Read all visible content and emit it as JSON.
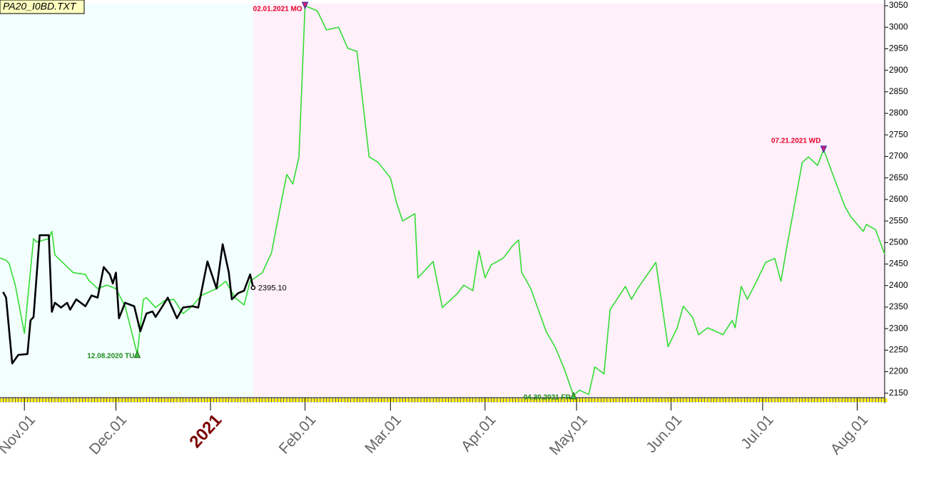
{
  "chart_data": {
    "type": "line",
    "title": "PA20_I0BD.TXT",
    "xlim": [
      "2020-10-24",
      "2021-08-10"
    ],
    "xticks": [
      {
        "value": "2020-11-01",
        "label": "Nov.01"
      },
      {
        "value": "2020-12-01",
        "label": "Dec.01"
      },
      {
        "value": "2021-01-01",
        "label": "2021"
      },
      {
        "value": "2021-02-01",
        "label": "Feb.01"
      },
      {
        "value": "2021-03-01",
        "label": "Mar.01"
      },
      {
        "value": "2021-04-01",
        "label": "Apr.01"
      },
      {
        "value": "2021-05-01",
        "label": "May.01"
      },
      {
        "value": "2021-06-01",
        "label": "Jun.01"
      },
      {
        "value": "2021-07-01",
        "label": "Jul.01"
      },
      {
        "value": "2021-08-01",
        "label": "Aug.01"
      }
    ],
    "ylim": [
      2143,
      3055
    ],
    "yticks": [
      2150,
      2200,
      2250,
      2300,
      2350,
      2400,
      2450,
      2500,
      2550,
      2600,
      2650,
      2700,
      2750,
      2800,
      2850,
      2900,
      2950,
      3000,
      3050
    ],
    "forecast_start": "2021-01-15",
    "series": [
      {
        "color": "#33dd33",
        "x": [
          "2020-10-24",
          "2020-10-26",
          "2020-10-27",
          "2020-10-29",
          "2020-11-01",
          "2020-11-04",
          "2020-11-05",
          "2020-11-09",
          "2020-11-10",
          "2020-11-11",
          "2020-11-17",
          "2020-11-21",
          "2020-11-22",
          "2020-11-25",
          "2020-11-28",
          "2020-12-01",
          "2020-12-04",
          "2020-12-08",
          "2020-12-10",
          "2020-12-11",
          "2020-12-14",
          "2020-12-17",
          "2020-12-20",
          "2020-12-23",
          "2020-12-26",
          "2020-12-29",
          "2021-01-03",
          "2021-01-06",
          "2021-01-09",
          "2021-01-12",
          "2021-01-14",
          "2021-01-18",
          "2021-01-21",
          "2021-01-23",
          "2021-01-26",
          "2021-01-28",
          "2021-01-30",
          "2021-02-01",
          "2021-02-05",
          "2021-02-08",
          "2021-02-12",
          "2021-02-15",
          "2021-02-18",
          "2021-02-22",
          "2021-02-25",
          "2021-03-01",
          "2021-03-03",
          "2021-03-05",
          "2021-03-09",
          "2021-03-10",
          "2021-03-15",
          "2021-03-18",
          "2021-03-23",
          "2021-03-25",
          "2021-03-28",
          "2021-03-30",
          "2021-04-01",
          "2021-04-03",
          "2021-04-07",
          "2021-04-10",
          "2021-04-12",
          "2021-04-13",
          "2021-04-16",
          "2021-04-21",
          "2021-04-24",
          "2021-04-27",
          "2021-04-30",
          "2021-05-02",
          "2021-05-05",
          "2021-05-07",
          "2021-05-10",
          "2021-05-12",
          "2021-05-17",
          "2021-05-19",
          "2021-05-21",
          "2021-05-27",
          "2021-05-31",
          "2021-06-03",
          "2021-06-05",
          "2021-06-08",
          "2021-06-10",
          "2021-06-13",
          "2021-06-18",
          "2021-06-21",
          "2021-06-22",
          "2021-06-24",
          "2021-06-26",
          "2021-06-29",
          "2021-07-02",
          "2021-07-05",
          "2021-07-07",
          "2021-07-09",
          "2021-07-14",
          "2021-07-16",
          "2021-07-19",
          "2021-07-21",
          "2021-07-24",
          "2021-07-28",
          "2021-07-30",
          "2021-08-03",
          "2021-08-04",
          "2021-08-07",
          "2021-08-10"
        ],
        "values": [
          2464,
          2459,
          2451,
          2401,
          2289,
          2509,
          2501,
          2509,
          2526,
          2471,
          2430,
          2426,
          2413,
          2393,
          2401,
          2393,
          2352,
          2241,
          2368,
          2372,
          2349,
          2365,
          2368,
          2335,
          2352,
          2377,
          2393,
          2410,
          2372,
          2355,
          2410,
          2430,
          2476,
          2550,
          2658,
          2636,
          2699,
          3050,
          3038,
          2994,
          3000,
          2951,
          2944,
          2699,
          2686,
          2650,
          2592,
          2550,
          2567,
          2418,
          2456,
          2349,
          2382,
          2401,
          2388,
          2481,
          2418,
          2448,
          2464,
          2492,
          2506,
          2431,
          2393,
          2294,
          2257,
          2206,
          2145,
          2157,
          2147,
          2211,
          2195,
          2344,
          2398,
          2368,
          2393,
          2454,
          2258,
          2302,
          2352,
          2327,
          2286,
          2302,
          2286,
          2319,
          2302,
          2398,
          2368,
          2410,
          2454,
          2463,
          2410,
          2492,
          2686,
          2699,
          2679,
          2716,
          2658,
          2583,
          2559,
          2526,
          2542,
          2530,
          2473
        ]
      },
      {
        "color": "#000000",
        "x": [
          "2020-10-25",
          "2020-10-26",
          "2020-10-28",
          "2020-10-30",
          "2020-11-02",
          "2020-11-03",
          "2020-11-04",
          "2020-11-06",
          "2020-11-09",
          "2020-11-10",
          "2020-11-11",
          "2020-11-13",
          "2020-11-15",
          "2020-11-16",
          "2020-11-18",
          "2020-11-21",
          "2020-11-23",
          "2020-11-25",
          "2020-11-27",
          "2020-11-29",
          "2020-11-30",
          "2020-12-01",
          "2020-12-02",
          "2020-12-04",
          "2020-12-07",
          "2020-12-09",
          "2020-12-11",
          "2020-12-13",
          "2020-12-14",
          "2020-12-16",
          "2020-12-18",
          "2020-12-21",
          "2020-12-23",
          "2020-12-26",
          "2020-12-28",
          "2020-12-31",
          "2021-01-03",
          "2021-01-05",
          "2021-01-07",
          "2021-01-08",
          "2021-01-10",
          "2021-01-12",
          "2021-01-14",
          "2021-01-15"
        ],
        "values": [
          2385,
          2372,
          2219,
          2239,
          2241,
          2319,
          2327,
          2517,
          2517,
          2339,
          2360,
          2349,
          2360,
          2344,
          2368,
          2352,
          2377,
          2372,
          2443,
          2426,
          2405,
          2430,
          2324,
          2360,
          2352,
          2294,
          2335,
          2340,
          2327,
          2349,
          2372,
          2324,
          2349,
          2352,
          2349,
          2456,
          2393,
          2496,
          2431,
          2368,
          2382,
          2388,
          2426,
          2395.1
        ],
        "value_labels": [
          null,
          null,
          null,
          null,
          null,
          null,
          null,
          null,
          null,
          null,
          null,
          null,
          null,
          null,
          null,
          null,
          null,
          null,
          null,
          null,
          null,
          null,
          null,
          null,
          null,
          null,
          null,
          null,
          null,
          null,
          null,
          null,
          null,
          null,
          null,
          null,
          null,
          null,
          null,
          null,
          null,
          null,
          null,
          "2395.10"
        ]
      }
    ],
    "annotations": [
      {
        "label": "02.01.2021 MO",
        "x": "2021-02-01",
        "value": 3050,
        "kind": "high",
        "color": "#e8002a"
      },
      {
        "label": "07.21.2021 WD",
        "x": "2021-07-21",
        "value": 2716,
        "kind": "high",
        "color": "#e8002a"
      },
      {
        "label": "12.08.2020 TU",
        "x": "2020-12-08",
        "value": 2241,
        "kind": "low",
        "color": "#1a8a1a"
      },
      {
        "label": "04.30.2021 FR",
        "x": "2021-04-30",
        "value": 2145,
        "kind": "low",
        "color": "#1a8a1a"
      }
    ]
  }
}
